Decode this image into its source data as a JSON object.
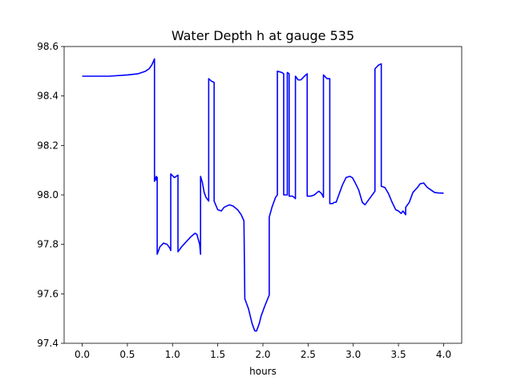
{
  "chart_data": {
    "type": "line",
    "title": "Water Depth h at gauge 535",
    "xlabel": "hours",
    "ylabel": "",
    "xlim": [
      -0.2,
      4.2
    ],
    "ylim": [
      97.4,
      98.6
    ],
    "xticks": [
      0.0,
      0.5,
      1.0,
      1.5,
      2.0,
      2.5,
      3.0,
      3.5,
      4.0
    ],
    "xtick_labels": [
      "0.0",
      "0.5",
      "1.0",
      "1.5",
      "2.0",
      "2.5",
      "3.0",
      "3.5",
      "4.0"
    ],
    "yticks": [
      97.4,
      97.6,
      97.8,
      98.0,
      98.2,
      98.4,
      98.6
    ],
    "ytick_labels": [
      "97.4",
      "97.6",
      "97.8",
      "98.0",
      "98.2",
      "98.4",
      "98.6"
    ],
    "grid": false,
    "legend": false,
    "series": [
      {
        "color": "#0000ff",
        "points": [
          [
            0.0,
            98.48
          ],
          [
            0.3,
            98.48
          ],
          [
            0.5,
            98.485
          ],
          [
            0.62,
            98.49
          ],
          [
            0.7,
            98.5
          ],
          [
            0.74,
            98.51
          ],
          [
            0.77,
            98.525
          ],
          [
            0.8,
            98.55
          ],
          [
            0.8,
            98.055
          ],
          [
            0.81,
            98.07
          ],
          [
            0.82,
            98.06
          ],
          [
            0.82,
            98.075
          ],
          [
            0.83,
            98.07
          ],
          [
            0.83,
            97.76
          ],
          [
            0.86,
            97.79
          ],
          [
            0.9,
            97.805
          ],
          [
            0.94,
            97.8
          ],
          [
            0.97,
            97.785
          ],
          [
            0.98,
            97.775
          ],
          [
            0.98,
            98.085
          ],
          [
            1.02,
            98.07
          ],
          [
            1.06,
            98.08
          ],
          [
            1.06,
            97.77
          ],
          [
            1.1,
            97.79
          ],
          [
            1.15,
            97.81
          ],
          [
            1.2,
            97.83
          ],
          [
            1.25,
            97.845
          ],
          [
            1.27,
            97.84
          ],
          [
            1.3,
            97.8
          ],
          [
            1.31,
            97.76
          ],
          [
            1.31,
            98.075
          ],
          [
            1.33,
            98.05
          ],
          [
            1.35,
            98.01
          ],
          [
            1.37,
            97.99
          ],
          [
            1.4,
            97.975
          ],
          [
            1.4,
            98.47
          ],
          [
            1.43,
            98.46
          ],
          [
            1.46,
            98.455
          ],
          [
            1.46,
            97.975
          ],
          [
            1.5,
            97.94
          ],
          [
            1.54,
            97.935
          ],
          [
            1.57,
            97.95
          ],
          [
            1.63,
            97.96
          ],
          [
            1.67,
            97.955
          ],
          [
            1.72,
            97.94
          ],
          [
            1.76,
            97.92
          ],
          [
            1.79,
            97.895
          ],
          [
            1.8,
            97.58
          ],
          [
            1.84,
            97.54
          ],
          [
            1.88,
            97.48
          ],
          [
            1.91,
            97.45
          ],
          [
            1.93,
            97.45
          ],
          [
            1.96,
            97.48
          ],
          [
            1.98,
            97.51
          ],
          [
            2.02,
            97.55
          ],
          [
            2.07,
            97.595
          ],
          [
            2.07,
            97.91
          ],
          [
            2.1,
            97.95
          ],
          [
            2.14,
            97.99
          ],
          [
            2.16,
            98.0
          ],
          [
            2.16,
            98.5
          ],
          [
            2.21,
            98.495
          ],
          [
            2.23,
            98.49
          ],
          [
            2.23,
            98.0
          ],
          [
            2.27,
            98.0
          ],
          [
            2.27,
            98.495
          ],
          [
            2.29,
            98.49
          ],
          [
            2.29,
            97.995
          ],
          [
            2.33,
            97.995
          ],
          [
            2.36,
            97.985
          ],
          [
            2.36,
            98.48
          ],
          [
            2.39,
            98.465
          ],
          [
            2.42,
            98.465
          ],
          [
            2.46,
            98.48
          ],
          [
            2.49,
            98.49
          ],
          [
            2.49,
            97.995
          ],
          [
            2.53,
            97.995
          ],
          [
            2.57,
            98.0
          ],
          [
            2.6,
            98.01
          ],
          [
            2.62,
            98.015
          ],
          [
            2.65,
            98.005
          ],
          [
            2.67,
            97.99
          ],
          [
            2.67,
            98.485
          ],
          [
            2.71,
            98.47
          ],
          [
            2.74,
            98.47
          ],
          [
            2.74,
            97.965
          ],
          [
            2.77,
            97.965
          ],
          [
            2.79,
            97.97
          ],
          [
            2.81,
            97.97
          ],
          [
            2.84,
            98.0
          ],
          [
            2.88,
            98.04
          ],
          [
            2.92,
            98.07
          ],
          [
            2.96,
            98.075
          ],
          [
            2.99,
            98.07
          ],
          [
            3.02,
            98.05
          ],
          [
            3.06,
            98.02
          ],
          [
            3.1,
            97.97
          ],
          [
            3.13,
            97.96
          ],
          [
            3.16,
            97.975
          ],
          [
            3.2,
            97.995
          ],
          [
            3.24,
            98.015
          ],
          [
            3.24,
            98.51
          ],
          [
            3.28,
            98.525
          ],
          [
            3.31,
            98.53
          ],
          [
            3.31,
            98.035
          ],
          [
            3.35,
            98.03
          ],
          [
            3.39,
            98.005
          ],
          [
            3.43,
            97.97
          ],
          [
            3.47,
            97.94
          ],
          [
            3.5,
            97.935
          ],
          [
            3.53,
            97.925
          ],
          [
            3.55,
            97.935
          ],
          [
            3.58,
            97.92
          ],
          [
            3.58,
            97.95
          ],
          [
            3.62,
            97.97
          ],
          [
            3.66,
            98.01
          ],
          [
            3.71,
            98.03
          ],
          [
            3.74,
            98.045
          ],
          [
            3.78,
            98.048
          ],
          [
            3.82,
            98.03
          ],
          [
            3.86,
            98.02
          ],
          [
            3.9,
            98.01
          ],
          [
            3.94,
            98.008
          ],
          [
            4.0,
            98.007
          ]
        ]
      }
    ]
  }
}
